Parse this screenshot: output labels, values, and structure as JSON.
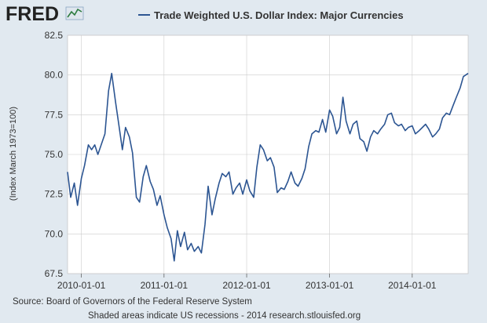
{
  "brand": {
    "logo_text": "FRED",
    "logo_icon": "fred-graph-icon"
  },
  "colors": {
    "background": "#e1e9f0",
    "plot_bg": "#ffffff",
    "series": "#2c5592",
    "grid": "#cccccc"
  },
  "footer": {
    "source": "Source: Board of Governors of the Federal Reserve System",
    "note": "Shaded areas indicate US recessions - 2014 research.stlouisfed.org"
  },
  "chart_data": {
    "type": "line",
    "title": "Trade Weighted U.S. Dollar Index: Major Currencies",
    "xlabel": "",
    "ylabel": "(Index March 1973=100)",
    "legend_position": "top",
    "grid": true,
    "ylim": [
      67.5,
      82.5
    ],
    "xlim": [
      "2009-11-01",
      "2014-09-05"
    ],
    "y_ticks": [
      "67.5",
      "70.0",
      "72.5",
      "75.0",
      "77.5",
      "80.0",
      "82.5"
    ],
    "x_ticks": [
      "2010-01-01",
      "2011-01-01",
      "2012-01-01",
      "2013-01-01",
      "2014-01-01"
    ],
    "series": [
      {
        "name": "Trade Weighted U.S. Dollar Index: Major Currencies",
        "x": [
          "2009-11-01",
          "2009-11-15",
          "2009-12-01",
          "2009-12-15",
          "2010-01-01",
          "2010-01-15",
          "2010-02-01",
          "2010-02-15",
          "2010-03-01",
          "2010-03-15",
          "2010-04-01",
          "2010-04-15",
          "2010-05-01",
          "2010-05-15",
          "2010-06-01",
          "2010-06-15",
          "2010-07-01",
          "2010-07-15",
          "2010-08-01",
          "2010-08-15",
          "2010-09-01",
          "2010-09-15",
          "2010-10-01",
          "2010-10-15",
          "2010-11-01",
          "2010-11-15",
          "2010-12-01",
          "2010-12-15",
          "2011-01-01",
          "2011-01-15",
          "2011-02-01",
          "2011-02-15",
          "2011-03-01",
          "2011-03-15",
          "2011-04-01",
          "2011-04-15",
          "2011-05-01",
          "2011-05-15",
          "2011-06-01",
          "2011-06-15",
          "2011-07-01",
          "2011-07-15",
          "2011-08-01",
          "2011-08-15",
          "2011-09-01",
          "2011-09-15",
          "2011-10-01",
          "2011-10-15",
          "2011-11-01",
          "2011-11-15",
          "2011-12-01",
          "2011-12-15",
          "2012-01-01",
          "2012-01-15",
          "2012-02-01",
          "2012-02-15",
          "2012-03-01",
          "2012-03-15",
          "2012-04-01",
          "2012-04-15",
          "2012-05-01",
          "2012-05-15",
          "2012-06-01",
          "2012-06-15",
          "2012-07-01",
          "2012-07-15",
          "2012-08-01",
          "2012-08-15",
          "2012-09-01",
          "2012-09-15",
          "2012-10-01",
          "2012-10-15",
          "2012-11-01",
          "2012-11-15",
          "2012-12-01",
          "2012-12-15",
          "2013-01-01",
          "2013-01-15",
          "2013-02-01",
          "2013-02-15",
          "2013-03-01",
          "2013-03-15",
          "2013-04-01",
          "2013-04-15",
          "2013-05-01",
          "2013-05-15",
          "2013-06-01",
          "2013-06-15",
          "2013-07-01",
          "2013-07-15",
          "2013-08-01",
          "2013-08-15",
          "2013-09-01",
          "2013-09-15",
          "2013-10-01",
          "2013-10-15",
          "2013-11-01",
          "2013-11-15",
          "2013-12-01",
          "2013-12-15",
          "2014-01-01",
          "2014-01-15",
          "2014-02-01",
          "2014-02-15",
          "2014-03-01",
          "2014-03-15",
          "2014-04-01",
          "2014-04-15",
          "2014-05-01",
          "2014-05-15",
          "2014-06-01",
          "2014-06-15",
          "2014-07-01",
          "2014-07-15",
          "2014-08-01",
          "2014-08-15",
          "2014-09-05"
        ],
        "values": [
          73.9,
          72.3,
          73.2,
          71.8,
          73.5,
          74.3,
          75.6,
          75.3,
          75.6,
          75.0,
          75.7,
          76.3,
          79.0,
          80.1,
          78.3,
          76.9,
          75.3,
          76.7,
          76.1,
          75.1,
          72.3,
          72.0,
          73.6,
          74.3,
          73.3,
          72.8,
          71.8,
          72.4,
          71.2,
          70.4,
          69.7,
          68.3,
          70.2,
          69.2,
          70.1,
          69.0,
          69.4,
          68.9,
          69.2,
          68.8,
          70.6,
          73.0,
          71.2,
          72.2,
          73.2,
          73.8,
          73.6,
          73.9,
          72.5,
          72.9,
          73.2,
          72.5,
          73.4,
          72.7,
          72.3,
          74.2,
          75.6,
          75.3,
          74.6,
          74.8,
          74.2,
          72.6,
          72.9,
          72.8,
          73.3,
          73.9,
          73.2,
          73.0,
          73.5,
          74.1,
          75.5,
          76.3,
          76.5,
          76.4,
          77.2,
          76.4,
          77.8,
          77.4,
          76.3,
          76.7,
          78.6,
          77.1,
          76.3,
          76.9,
          77.1,
          76.0,
          75.8,
          75.2,
          76.1,
          76.5,
          76.3,
          76.6,
          76.9,
          77.5,
          77.6,
          77.0,
          76.8,
          76.9,
          76.5,
          76.7,
          76.8,
          76.3,
          76.5,
          76.7,
          76.9,
          76.6,
          76.1,
          76.3,
          76.6,
          77.3,
          77.6,
          77.5,
          78.1,
          78.6,
          79.2,
          79.9,
          80.1
        ]
      }
    ]
  }
}
